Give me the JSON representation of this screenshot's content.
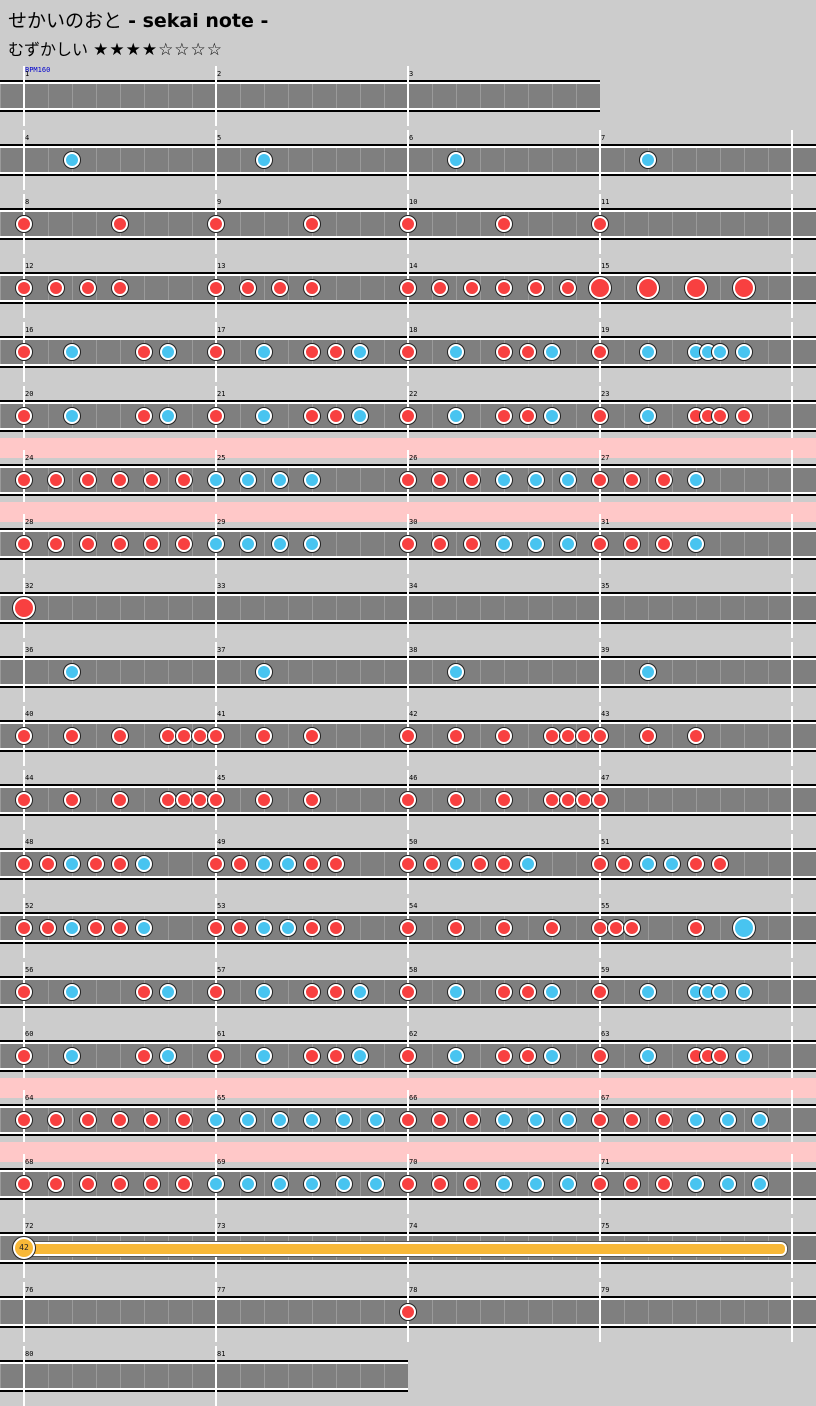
{
  "header": {
    "title_jp": "せかいのおと",
    "title_en": "- sekai note -",
    "difficulty_label": "むずかしい",
    "stars": "★★★★☆☆☆☆"
  },
  "bpm_label": "BPM160",
  "colors": {
    "background": "#cccccc",
    "track": "#7f7f7f",
    "gogo": "#ffc8c8",
    "don": "#f84040",
    "ka": "#48c4f0",
    "roll": "#f8b838"
  },
  "chart_data": {
    "type": "table",
    "measures_per_row": 4,
    "divisions_per_measure": 8,
    "balloon_hits": "42",
    "rows": [
      {
        "first_measure": 1,
        "measures": 3,
        "gogo": false,
        "notes": []
      },
      {
        "first_measure": 4,
        "measures": 4,
        "gogo": false,
        "notes": [
          [
            2,
            "k"
          ],
          [
            10,
            "k"
          ],
          [
            18,
            "k"
          ],
          [
            26,
            "k"
          ]
        ]
      },
      {
        "first_measure": 8,
        "measures": 4,
        "gogo": false,
        "notes": [
          [
            0,
            "d"
          ],
          [
            4,
            "d"
          ],
          [
            8,
            "d"
          ],
          [
            12,
            "d"
          ],
          [
            16,
            "d"
          ],
          [
            20,
            "d"
          ],
          [
            24,
            "d"
          ]
        ]
      },
      {
        "first_measure": 12,
        "measures": 4,
        "gogo": false,
        "notes": [
          [
            0,
            "d"
          ],
          [
            1.33,
            "d"
          ],
          [
            2.67,
            "d"
          ],
          [
            4,
            "d"
          ],
          [
            8,
            "d"
          ],
          [
            9.33,
            "d"
          ],
          [
            10.67,
            "d"
          ],
          [
            12,
            "d"
          ],
          [
            16,
            "d"
          ],
          [
            17.33,
            "d"
          ],
          [
            18.67,
            "d"
          ],
          [
            20,
            "d"
          ],
          [
            21.33,
            "d"
          ],
          [
            22.67,
            "d"
          ],
          [
            24,
            "D"
          ],
          [
            26,
            "D"
          ],
          [
            28,
            "D"
          ],
          [
            30,
            "D"
          ]
        ]
      },
      {
        "first_measure": 16,
        "measures": 4,
        "gogo": false,
        "notes": [
          [
            0,
            "d"
          ],
          [
            2,
            "k"
          ],
          [
            5,
            "d"
          ],
          [
            6,
            "k"
          ],
          [
            8,
            "d"
          ],
          [
            10,
            "k"
          ],
          [
            12,
            "d"
          ],
          [
            13,
            "d"
          ],
          [
            14,
            "k"
          ],
          [
            16,
            "d"
          ],
          [
            18,
            "k"
          ],
          [
            20,
            "d"
          ],
          [
            21,
            "d"
          ],
          [
            22,
            "k"
          ],
          [
            24,
            "d"
          ],
          [
            26,
            "k"
          ],
          [
            28,
            "k"
          ],
          [
            28.5,
            "k"
          ],
          [
            29,
            "k"
          ],
          [
            30,
            "k"
          ]
        ]
      },
      {
        "first_measure": 20,
        "measures": 4,
        "gogo": false,
        "notes": [
          [
            0,
            "d"
          ],
          [
            2,
            "k"
          ],
          [
            5,
            "d"
          ],
          [
            6,
            "k"
          ],
          [
            8,
            "d"
          ],
          [
            10,
            "k"
          ],
          [
            12,
            "d"
          ],
          [
            13,
            "d"
          ],
          [
            14,
            "k"
          ],
          [
            16,
            "d"
          ],
          [
            18,
            "k"
          ],
          [
            20,
            "d"
          ],
          [
            21,
            "d"
          ],
          [
            22,
            "k"
          ],
          [
            24,
            "d"
          ],
          [
            26,
            "k"
          ],
          [
            28,
            "d"
          ],
          [
            28.5,
            "d"
          ],
          [
            29,
            "d"
          ],
          [
            30,
            "d"
          ]
        ]
      },
      {
        "first_measure": 24,
        "measures": 4,
        "gogo": true,
        "notes": [
          [
            0,
            "d"
          ],
          [
            1.33,
            "d"
          ],
          [
            2.67,
            "d"
          ],
          [
            4,
            "d"
          ],
          [
            5.33,
            "d"
          ],
          [
            6.67,
            "d"
          ],
          [
            8,
            "k"
          ],
          [
            9.33,
            "k"
          ],
          [
            10.67,
            "k"
          ],
          [
            12,
            "k"
          ],
          [
            16,
            "d"
          ],
          [
            17.33,
            "d"
          ],
          [
            18.67,
            "d"
          ],
          [
            20,
            "k"
          ],
          [
            21.33,
            "k"
          ],
          [
            22.67,
            "k"
          ],
          [
            24,
            "d"
          ],
          [
            25.33,
            "d"
          ],
          [
            26.67,
            "d"
          ],
          [
            28,
            "k"
          ]
        ]
      },
      {
        "first_measure": 28,
        "measures": 4,
        "gogo": true,
        "notes": [
          [
            0,
            "d"
          ],
          [
            1.33,
            "d"
          ],
          [
            2.67,
            "d"
          ],
          [
            4,
            "d"
          ],
          [
            5.33,
            "d"
          ],
          [
            6.67,
            "d"
          ],
          [
            8,
            "k"
          ],
          [
            9.33,
            "k"
          ],
          [
            10.67,
            "k"
          ],
          [
            12,
            "k"
          ],
          [
            16,
            "d"
          ],
          [
            17.33,
            "d"
          ],
          [
            18.67,
            "d"
          ],
          [
            20,
            "k"
          ],
          [
            21.33,
            "k"
          ],
          [
            22.67,
            "k"
          ],
          [
            24,
            "d"
          ],
          [
            25.33,
            "d"
          ],
          [
            26.67,
            "d"
          ],
          [
            28,
            "k"
          ]
        ]
      },
      {
        "first_measure": 32,
        "measures": 4,
        "gogo": false,
        "notes": [
          [
            0,
            "D"
          ]
        ]
      },
      {
        "first_measure": 36,
        "measures": 4,
        "gogo": false,
        "notes": [
          [
            2,
            "k"
          ],
          [
            10,
            "k"
          ],
          [
            18,
            "k"
          ],
          [
            26,
            "k"
          ]
        ]
      },
      {
        "first_measure": 40,
        "measures": 4,
        "gogo": false,
        "notes": [
          [
            0,
            "d"
          ],
          [
            2,
            "d"
          ],
          [
            4,
            "d"
          ],
          [
            6,
            "d"
          ],
          [
            6.67,
            "d"
          ],
          [
            7.33,
            "d"
          ],
          [
            8,
            "d"
          ],
          [
            10,
            "d"
          ],
          [
            12,
            "d"
          ],
          [
            16,
            "d"
          ],
          [
            18,
            "d"
          ],
          [
            20,
            "d"
          ],
          [
            22,
            "d"
          ],
          [
            22.67,
            "d"
          ],
          [
            23.33,
            "d"
          ],
          [
            24,
            "d"
          ],
          [
            26,
            "d"
          ],
          [
            28,
            "d"
          ]
        ]
      },
      {
        "first_measure": 44,
        "measures": 4,
        "gogo": false,
        "notes": [
          [
            0,
            "d"
          ],
          [
            2,
            "d"
          ],
          [
            4,
            "d"
          ],
          [
            6,
            "d"
          ],
          [
            6.67,
            "d"
          ],
          [
            7.33,
            "d"
          ],
          [
            8,
            "d"
          ],
          [
            10,
            "d"
          ],
          [
            12,
            "d"
          ],
          [
            16,
            "d"
          ],
          [
            18,
            "d"
          ],
          [
            20,
            "d"
          ],
          [
            22,
            "d"
          ],
          [
            22.67,
            "d"
          ],
          [
            23.33,
            "d"
          ],
          [
            24,
            "d"
          ]
        ]
      },
      {
        "first_measure": 48,
        "measures": 4,
        "gogo": false,
        "notes": [
          [
            0,
            "d"
          ],
          [
            1,
            "d"
          ],
          [
            2,
            "k"
          ],
          [
            3,
            "d"
          ],
          [
            4,
            "d"
          ],
          [
            5,
            "k"
          ],
          [
            8,
            "d"
          ],
          [
            9,
            "d"
          ],
          [
            10,
            "k"
          ],
          [
            11,
            "k"
          ],
          [
            12,
            "d"
          ],
          [
            13,
            "d"
          ],
          [
            16,
            "d"
          ],
          [
            17,
            "d"
          ],
          [
            18,
            "k"
          ],
          [
            19,
            "d"
          ],
          [
            20,
            "d"
          ],
          [
            21,
            "k"
          ],
          [
            24,
            "d"
          ],
          [
            25,
            "d"
          ],
          [
            26,
            "k"
          ],
          [
            27,
            "k"
          ],
          [
            28,
            "d"
          ],
          [
            29,
            "d"
          ]
        ]
      },
      {
        "first_measure": 52,
        "measures": 4,
        "gogo": false,
        "notes": [
          [
            0,
            "d"
          ],
          [
            1,
            "d"
          ],
          [
            2,
            "k"
          ],
          [
            3,
            "d"
          ],
          [
            4,
            "d"
          ],
          [
            5,
            "k"
          ],
          [
            8,
            "d"
          ],
          [
            9,
            "d"
          ],
          [
            10,
            "k"
          ],
          [
            11,
            "k"
          ],
          [
            12,
            "d"
          ],
          [
            13,
            "d"
          ],
          [
            16,
            "d"
          ],
          [
            18,
            "d"
          ],
          [
            20,
            "d"
          ],
          [
            22,
            "d"
          ],
          [
            24,
            "d"
          ],
          [
            24.67,
            "d"
          ],
          [
            25.33,
            "d"
          ],
          [
            28,
            "d"
          ],
          [
            30,
            "K"
          ]
        ]
      },
      {
        "first_measure": 56,
        "measures": 4,
        "gogo": false,
        "notes": [
          [
            0,
            "d"
          ],
          [
            2,
            "k"
          ],
          [
            5,
            "d"
          ],
          [
            6,
            "k"
          ],
          [
            8,
            "d"
          ],
          [
            10,
            "k"
          ],
          [
            12,
            "d"
          ],
          [
            13,
            "d"
          ],
          [
            14,
            "k"
          ],
          [
            16,
            "d"
          ],
          [
            18,
            "k"
          ],
          [
            20,
            "d"
          ],
          [
            21,
            "d"
          ],
          [
            22,
            "k"
          ],
          [
            24,
            "d"
          ],
          [
            26,
            "k"
          ],
          [
            28,
            "k"
          ],
          [
            28.5,
            "k"
          ],
          [
            29,
            "k"
          ],
          [
            30,
            "k"
          ]
        ]
      },
      {
        "first_measure": 60,
        "measures": 4,
        "gogo": false,
        "notes": [
          [
            0,
            "d"
          ],
          [
            2,
            "k"
          ],
          [
            5,
            "d"
          ],
          [
            6,
            "k"
          ],
          [
            8,
            "d"
          ],
          [
            10,
            "k"
          ],
          [
            12,
            "d"
          ],
          [
            13,
            "d"
          ],
          [
            14,
            "k"
          ],
          [
            16,
            "d"
          ],
          [
            18,
            "k"
          ],
          [
            20,
            "d"
          ],
          [
            21,
            "d"
          ],
          [
            22,
            "k"
          ],
          [
            24,
            "d"
          ],
          [
            26,
            "k"
          ],
          [
            28,
            "d"
          ],
          [
            28.5,
            "d"
          ],
          [
            29,
            "d"
          ],
          [
            30,
            "k"
          ]
        ]
      },
      {
        "first_measure": 64,
        "measures": 4,
        "gogo": true,
        "notes": [
          [
            0,
            "d"
          ],
          [
            1.33,
            "d"
          ],
          [
            2.67,
            "d"
          ],
          [
            4,
            "d"
          ],
          [
            5.33,
            "d"
          ],
          [
            6.67,
            "d"
          ],
          [
            8,
            "k"
          ],
          [
            9.33,
            "k"
          ],
          [
            10.67,
            "k"
          ],
          [
            12,
            "k"
          ],
          [
            13.33,
            "k"
          ],
          [
            14.67,
            "k"
          ],
          [
            16,
            "d"
          ],
          [
            17.33,
            "d"
          ],
          [
            18.67,
            "d"
          ],
          [
            20,
            "k"
          ],
          [
            21.33,
            "k"
          ],
          [
            22.67,
            "k"
          ],
          [
            24,
            "d"
          ],
          [
            25.33,
            "d"
          ],
          [
            26.67,
            "d"
          ],
          [
            28,
            "k"
          ],
          [
            29.33,
            "k"
          ],
          [
            30.67,
            "k"
          ]
        ]
      },
      {
        "first_measure": 68,
        "measures": 4,
        "gogo": true,
        "notes": [
          [
            0,
            "d"
          ],
          [
            1.33,
            "d"
          ],
          [
            2.67,
            "d"
          ],
          [
            4,
            "d"
          ],
          [
            5.33,
            "d"
          ],
          [
            6.67,
            "d"
          ],
          [
            8,
            "k"
          ],
          [
            9.33,
            "k"
          ],
          [
            10.67,
            "k"
          ],
          [
            12,
            "k"
          ],
          [
            13.33,
            "k"
          ],
          [
            14.67,
            "k"
          ],
          [
            16,
            "d"
          ],
          [
            17.33,
            "d"
          ],
          [
            18.67,
            "d"
          ],
          [
            20,
            "k"
          ],
          [
            21.33,
            "k"
          ],
          [
            22.67,
            "k"
          ],
          [
            24,
            "d"
          ],
          [
            25.33,
            "d"
          ],
          [
            26.67,
            "d"
          ],
          [
            28,
            "k"
          ],
          [
            29.33,
            "k"
          ],
          [
            30.67,
            "k"
          ]
        ]
      },
      {
        "first_measure": 72,
        "measures": 4,
        "gogo": false,
        "notes": [],
        "balloon": [
          0,
          32
        ]
      },
      {
        "first_measure": 76,
        "measures": 4,
        "gogo": false,
        "notes": [
          [
            16,
            "d"
          ]
        ]
      },
      {
        "first_measure": 80,
        "measures": 2,
        "gogo": false,
        "notes": []
      }
    ]
  }
}
